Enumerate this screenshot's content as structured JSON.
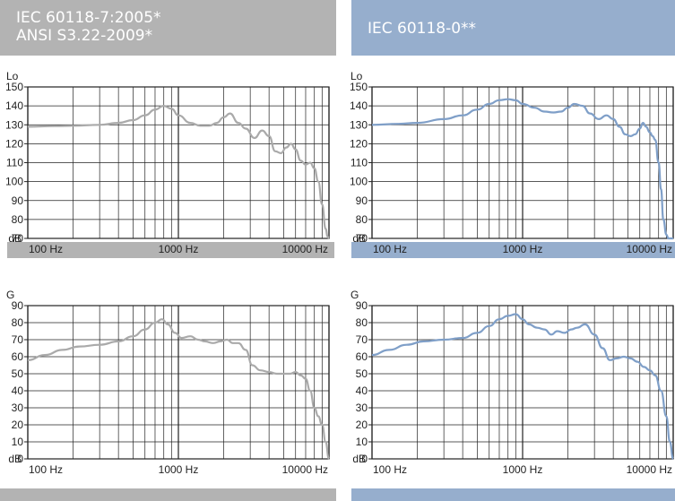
{
  "panels": [
    {
      "title_lines": [
        "IEC 60118-7:2005*",
        "ANSI S3.22-2009*"
      ],
      "color": "#b3b3b3"
    },
    {
      "title_lines": [
        "IEC 60118-0**"
      ],
      "color": "#96aecd"
    }
  ],
  "chart_data": [
    {
      "type": "line",
      "title": "",
      "ylabel": "Lo",
      "unit_label": "dB",
      "xscale": "log",
      "xlim": [
        100,
        10000
      ],
      "ylim": [
        70,
        150
      ],
      "xticks": [
        "100 Hz",
        "1000 Hz",
        "10000 Hz"
      ],
      "yticks": [
        "150",
        "140",
        "130",
        "120",
        "110",
        "100",
        "90",
        "80",
        "70"
      ],
      "grid": true,
      "line_color": "#aaaaaa",
      "series": [
        {
          "x": [
            100,
            150,
            200,
            300,
            400,
            500,
            600,
            700,
            800,
            900,
            1000,
            1200,
            1400,
            1600,
            1800,
            2000,
            2200,
            2500,
            2800,
            3200,
            3600,
            4000,
            4400,
            4800,
            5200,
            5600,
            6000,
            6500,
            7000,
            7500,
            8000,
            8500,
            9000,
            9500,
            9800,
            10000
          ],
          "values": [
            129,
            129.3,
            129.5,
            130,
            131,
            132.5,
            135,
            138,
            140,
            138.5,
            135,
            131,
            129.5,
            129.5,
            131,
            134,
            136,
            131,
            128,
            123,
            127,
            124,
            116,
            115,
            118,
            120,
            117,
            111,
            109,
            110,
            107,
            100,
            88,
            75,
            71,
            70
          ]
        }
      ]
    },
    {
      "type": "line",
      "title": "",
      "ylabel": "Lo",
      "unit_label": "dB",
      "xscale": "log",
      "xlim": [
        100,
        10000
      ],
      "ylim": [
        70,
        150
      ],
      "xticks": [
        "100 Hz",
        "1000 Hz",
        "10000 Hz"
      ],
      "yticks": [
        "150",
        "140",
        "130",
        "120",
        "110",
        "100",
        "90",
        "80",
        "70"
      ],
      "grid": true,
      "line_color": "#7f9fc8",
      "series": [
        {
          "x": [
            100,
            150,
            200,
            300,
            400,
            500,
            600,
            700,
            800,
            900,
            1000,
            1200,
            1400,
            1600,
            1800,
            2000,
            2200,
            2500,
            2800,
            3200,
            3600,
            4000,
            4400,
            4800,
            5200,
            5600,
            6000,
            6300,
            6600,
            7000,
            7300,
            7600,
            8000,
            8300,
            8600,
            9000,
            9300,
            9600,
            10000
          ],
          "values": [
            130,
            130.5,
            131,
            133,
            135,
            138,
            141,
            143,
            143.5,
            143,
            141,
            139,
            137,
            136.5,
            137,
            139,
            141,
            140,
            136,
            133,
            135,
            133,
            129,
            125,
            124,
            125,
            128,
            131,
            129,
            126,
            124,
            122,
            110,
            96,
            80,
            72,
            70,
            70,
            70
          ]
        }
      ]
    },
    {
      "type": "line",
      "title": "",
      "ylabel": "G",
      "unit_label": "dB",
      "xscale": "log",
      "xlim": [
        100,
        10000
      ],
      "ylim": [
        0,
        90
      ],
      "xticks": [
        "100 Hz",
        "1000 Hz",
        "10000 Hz"
      ],
      "yticks": [
        "90",
        "80",
        "70",
        "60",
        "50",
        "40",
        "30",
        "20",
        "10",
        "0"
      ],
      "grid": true,
      "line_color": "#aaaaaa",
      "series": [
        {
          "x": [
            100,
            130,
            170,
            220,
            300,
            400,
            500,
            600,
            700,
            780,
            850,
            950,
            1050,
            1200,
            1350,
            1500,
            1700,
            1900,
            2100,
            2300,
            2500,
            2800,
            3100,
            3500,
            4000,
            4500,
            5000,
            5500,
            6000,
            6500,
            7000,
            7500,
            8000,
            8500,
            9000,
            9500,
            10000
          ],
          "values": [
            58,
            61,
            64,
            66,
            67,
            69,
            72,
            76,
            80,
            82,
            79,
            74,
            71,
            72,
            70,
            69,
            68,
            69,
            70,
            68,
            68,
            64,
            55,
            52,
            51,
            50,
            50,
            50,
            51,
            49,
            47,
            40,
            30,
            25,
            20,
            10,
            0
          ]
        }
      ]
    },
    {
      "type": "line",
      "title": "",
      "ylabel": "G",
      "unit_label": "dB",
      "xscale": "log",
      "xlim": [
        100,
        10000
      ],
      "ylim": [
        0,
        90
      ],
      "xticks": [
        "100 Hz",
        "1000 Hz",
        "10000 Hz"
      ],
      "yticks": [
        "90",
        "80",
        "70",
        "60",
        "50",
        "40",
        "30",
        "20",
        "10",
        "0"
      ],
      "grid": true,
      "line_color": "#7f9fc8",
      "series": [
        {
          "x": [
            100,
            130,
            170,
            220,
            300,
            400,
            500,
            600,
            700,
            800,
            900,
            1000,
            1100,
            1250,
            1400,
            1550,
            1700,
            1900,
            2100,
            2300,
            2600,
            3000,
            3400,
            3800,
            4200,
            4700,
            5200,
            5800,
            6400,
            7000,
            7600,
            8300,
            9000,
            9500,
            10000
          ],
          "values": [
            61,
            64,
            67,
            69,
            70,
            71,
            74,
            78,
            82,
            84,
            85,
            82,
            79,
            77,
            76,
            73,
            75,
            74,
            76,
            77,
            79,
            73,
            65,
            58,
            59,
            60,
            59,
            57,
            54,
            52,
            49,
            40,
            25,
            10,
            0
          ]
        }
      ]
    }
  ],
  "footer_bars": [
    {
      "color": "#b3b3b3"
    },
    {
      "color": "#96aecd"
    }
  ]
}
